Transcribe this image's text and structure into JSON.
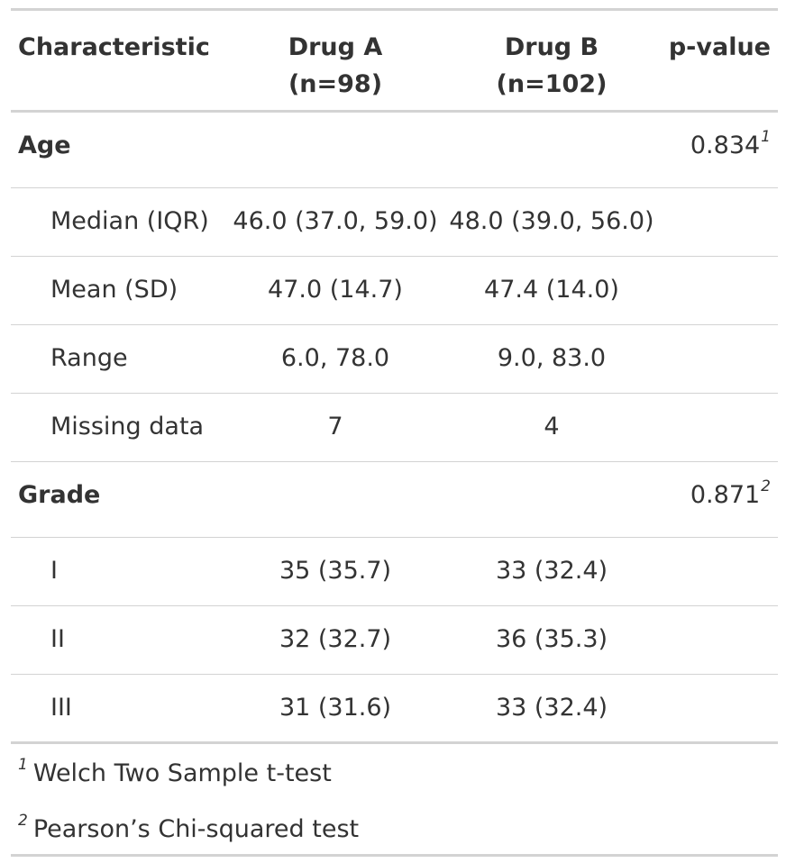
{
  "header": {
    "characteristic": "Characteristic",
    "drug_a": {
      "name": "Drug A",
      "n": "(n=98)"
    },
    "drug_b": {
      "name": "Drug B",
      "n": "(n=102)"
    },
    "p_value": "p-value"
  },
  "age": {
    "label": "Age",
    "p_value": "0.834",
    "footnote_mark": "1",
    "rows": [
      {
        "label": "Median (IQR)",
        "drug_a": "46.0 (37.0, 59.0)",
        "drug_b": "48.0 (39.0, 56.0)"
      },
      {
        "label": "Mean (SD)",
        "drug_a": "47.0 (14.7)",
        "drug_b": "47.4 (14.0)"
      },
      {
        "label": "Range",
        "drug_a": "6.0, 78.0",
        "drug_b": "9.0, 83.0"
      },
      {
        "label": "Missing data",
        "drug_a": "7",
        "drug_b": "4"
      }
    ]
  },
  "grade": {
    "label": "Grade",
    "p_value": "0.871",
    "footnote_mark": "2",
    "rows": [
      {
        "label": "I",
        "drug_a": "35 (35.7)",
        "drug_b": "33 (32.4)"
      },
      {
        "label": "II",
        "drug_a": "32 (32.7)",
        "drug_b": "36 (35.3)"
      },
      {
        "label": "III",
        "drug_a": "31 (31.6)",
        "drug_b": "33 (32.4)"
      }
    ]
  },
  "footnotes": [
    {
      "mark": "1",
      "text": "Welch Two Sample t-test"
    },
    {
      "mark": "2",
      "text": "Pearson’s Chi-squared test"
    }
  ]
}
